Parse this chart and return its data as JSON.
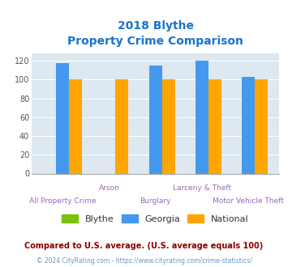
{
  "title_line1": "2018 Blythe",
  "title_line2": "Property Crime Comparison",
  "title_color": "#1874CD",
  "categories": [
    "All Property Crime",
    "Arson",
    "Burglary",
    "Larceny & Theft",
    "Motor Vehicle Theft"
  ],
  "blythe_values": [
    0,
    0,
    0,
    0,
    0
  ],
  "georgia_values": [
    118,
    0,
    115,
    120,
    103
  ],
  "national_values": [
    100,
    100,
    100,
    100,
    100
  ],
  "blythe_color": "#7DC110",
  "georgia_color": "#4499EE",
  "national_color": "#FFA500",
  "ylim": [
    0,
    128
  ],
  "yticks": [
    0,
    20,
    40,
    60,
    80,
    100,
    120
  ],
  "bg_color": "#DDE8F0",
  "fig_bg": "#FFFFFF",
  "legend_labels": [
    "Blythe",
    "Georgia",
    "National"
  ],
  "legend_text_color": "#333333",
  "xtick_color": "#9966BB",
  "ytick_color": "#555555",
  "footnote1": "Compared to U.S. average. (U.S. average equals 100)",
  "footnote2": "© 2024 CityRating.com - https://www.cityrating.com/crime-statistics/",
  "footnote1_color": "#8B0000",
  "footnote2_color": "#6699CC"
}
